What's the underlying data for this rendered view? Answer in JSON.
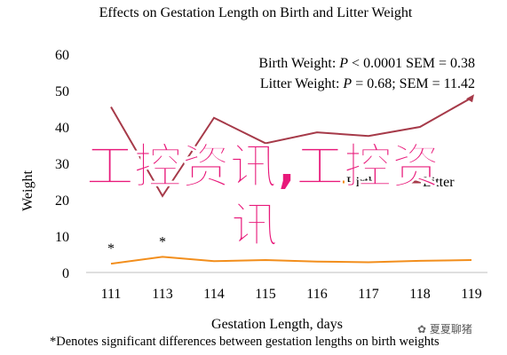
{
  "chart_data": {
    "type": "line",
    "title": "Effects on Gestation Length on Birth and Litter Weight",
    "xlabel": "Gestation Length, days",
    "ylabel": "Weight",
    "categories": [
      "111",
      "113",
      "114",
      "115",
      "116",
      "117",
      "118",
      "119"
    ],
    "ylim": [
      0,
      60
    ],
    "yticks": [
      "0",
      "10",
      "20",
      "30",
      "40",
      "50",
      "60"
    ],
    "grid": false,
    "legend_position": "center-right",
    "series": [
      {
        "name": "Birth",
        "color": "#f28e1c",
        "values": [
          2.4,
          4.3,
          3.1,
          3.4,
          3.0,
          2.8,
          3.2,
          3.4
        ]
      },
      {
        "name": "Litter",
        "color": "#a63a49",
        "values": [
          45.5,
          21.0,
          42.5,
          35.5,
          38.5,
          37.5,
          40.0,
          48.0
        ]
      }
    ],
    "annotations": [
      {
        "label": "*",
        "category": "111"
      },
      {
        "label": "*",
        "category": "113"
      }
    ],
    "stats_lines": [
      {
        "prefix": "Birth Weight: ",
        "italic": "P",
        "rest": " < 0.0001 SEM = 0.38"
      },
      {
        "prefix": "Litter Weight: ",
        "italic": "P",
        "rest": " = 0.68; SEM = 11.42"
      }
    ],
    "footnote": "*Denotes significant differences between gestation lengths on birth weights"
  },
  "overlay": {
    "watermark_line1": "工控资讯,工控资",
    "watermark_line2": "讯",
    "watermark_color": "#e8197a",
    "corner_watermark": "夏夏聊猪"
  }
}
